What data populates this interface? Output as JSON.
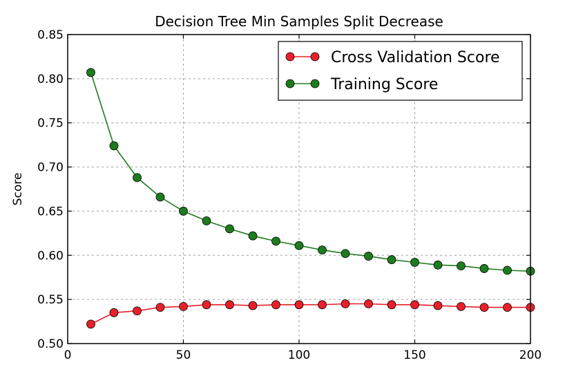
{
  "chart_data": {
    "type": "line",
    "title": "Decision Tree Min Samples Split Decrease",
    "xlabel": "",
    "ylabel": "Score",
    "xlim": [
      0,
      200
    ],
    "ylim": [
      0.5,
      0.85
    ],
    "xticks": [
      0,
      50,
      100,
      150,
      200
    ],
    "xtick_labels": [
      "0",
      "50",
      "100",
      "150",
      "200"
    ],
    "yticks": [
      0.5,
      0.55,
      0.6,
      0.65,
      0.7,
      0.75,
      0.8,
      0.85
    ],
    "ytick_labels": [
      "0.50",
      "0.55",
      "0.60",
      "0.65",
      "0.70",
      "0.75",
      "0.80",
      "0.85"
    ],
    "grid": true,
    "legend_position": "top-right",
    "x": [
      10,
      20,
      30,
      40,
      50,
      60,
      70,
      80,
      90,
      100,
      110,
      120,
      130,
      140,
      150,
      160,
      170,
      180,
      190,
      200
    ],
    "series": [
      {
        "name": "Cross Validation Score",
        "color": "#e8202a",
        "values": [
          0.522,
          0.535,
          0.537,
          0.541,
          0.542,
          0.544,
          0.544,
          0.543,
          0.544,
          0.544,
          0.544,
          0.545,
          0.545,
          0.544,
          0.544,
          0.543,
          0.542,
          0.541,
          0.541,
          0.541
        ]
      },
      {
        "name": "Training Score",
        "color": "#1e7b1e",
        "values": [
          0.807,
          0.724,
          0.688,
          0.666,
          0.65,
          0.639,
          0.63,
          0.622,
          0.616,
          0.611,
          0.606,
          0.602,
          0.599,
          0.595,
          0.592,
          0.589,
          0.588,
          0.585,
          0.583,
          0.582
        ]
      }
    ]
  }
}
